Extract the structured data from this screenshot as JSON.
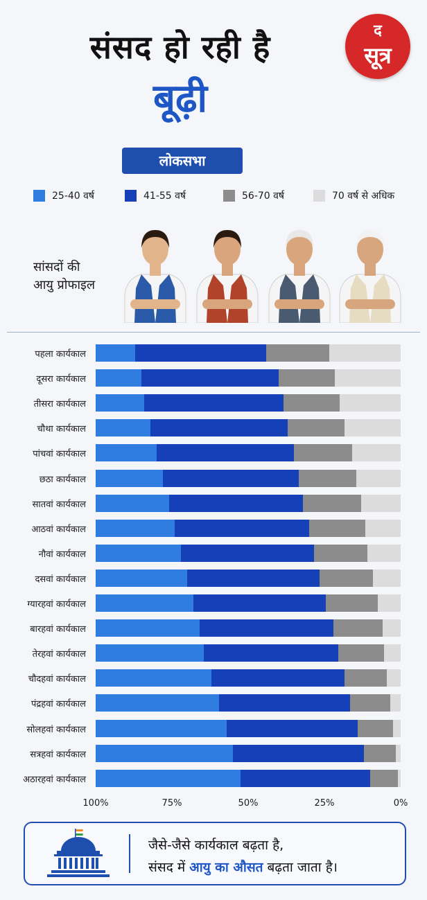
{
  "header": {
    "title_line1": "संसद हो रही है",
    "title_line2": "बूढ़ी",
    "subtitle_pill": "लोकसभा"
  },
  "logo": {
    "top": "द",
    "bottom": "सूत्र",
    "color": "#d62828"
  },
  "legend": [
    {
      "label": "25-40 वर्ष",
      "color": "#2f7de1"
    },
    {
      "label": "41-55 वर्ष",
      "color": "#1640b8"
    },
    {
      "label": "56-70 वर्ष",
      "color": "#8c8c8c"
    },
    {
      "label": "70 वर्ष से अधिक",
      "color": "#dcdcdc"
    }
  ],
  "profile": {
    "label_line1": "सांसदों की",
    "label_line2": "आयु प्रोफाइल"
  },
  "chart_data": {
    "type": "bar",
    "orientation": "horizontal-stacked-100",
    "x_axis": {
      "reversed": true,
      "min": 0,
      "max": 100,
      "ticks": [
        "100%",
        "75%",
        "50%",
        "25%",
        "0%"
      ]
    },
    "categories": [
      "पहला कार्यकाल",
      "दूसरा कार्यकाल",
      "तीसरा कार्यकाल",
      "चौथा कार्यकाल",
      "पांचवां कार्यकाल",
      "छठा कार्यकाल",
      "सातवां कार्यकाल",
      "आठवां कार्यकाल",
      "नौवां कार्यकाल",
      "दसवां कार्यकाल",
      "ग्यारहवां कार्यकाल",
      "बारहवां कार्यकाल",
      "तेरहवां कार्यकाल",
      "चौदहवां कार्यकाल",
      "पंद्रहवां कार्यकाल",
      "सोलहवां कार्यकाल",
      "सत्रहवां कार्यकाल",
      "अठारहवां कार्यकाल"
    ],
    "series": [
      {
        "name": "25-40 वर्ष",
        "color": "#2f7de1",
        "values": [
          13,
          15,
          16,
          18,
          20,
          22,
          24,
          26,
          28,
          30,
          32,
          34,
          35.5,
          38,
          40.5,
          43,
          45,
          47.5
        ]
      },
      {
        "name": "41-55 वर्ष",
        "color": "#1640b8",
        "values": [
          43,
          45,
          45.5,
          45,
          45,
          44.5,
          44,
          44,
          43.5,
          43.5,
          43.5,
          44,
          44,
          43.5,
          43,
          43,
          43,
          42.5
        ]
      },
      {
        "name": "56-70 वर्ष",
        "color": "#8c8c8c",
        "values": [
          20.5,
          18.5,
          18.5,
          18.5,
          19,
          19,
          19,
          18.5,
          17.5,
          17.5,
          17,
          16,
          15,
          14,
          13,
          11.5,
          10.5,
          9
        ]
      },
      {
        "name": "70 वर्ष से अधिक",
        "color": "#dcdcdc",
        "values": [
          23.5,
          21.5,
          20,
          18.5,
          16,
          14.5,
          13,
          11.5,
          11,
          9,
          7.5,
          6,
          5.5,
          4.5,
          3.5,
          2.5,
          1.5,
          1
        ]
      }
    ]
  },
  "footer": {
    "line1": "जैसे-जैसे कार्यकाल बढ़ता है,",
    "line2_pre": "संसद में ",
    "line2_highlight": "आयु का औसत",
    "line2_post": " बढ़ता जाता है।"
  },
  "avatars": [
    {
      "name": "young-mp-avatar",
      "vest": "#2a5aa8",
      "hair": "#2b1a10",
      "skin": "#e2b48c"
    },
    {
      "name": "middle-mp-avatar",
      "vest": "#b0432a",
      "hair": "#2b1a10",
      "skin": "#d9a57c"
    },
    {
      "name": "senior-mp-avatar",
      "vest": "#4a5a70",
      "hair": "#e8e8e8",
      "skin": "#d9a57c"
    },
    {
      "name": "elder-mp-avatar",
      "vest": "#e6dcc2",
      "hair": "#f2f2f2",
      "skin": "#d7a57e"
    }
  ]
}
